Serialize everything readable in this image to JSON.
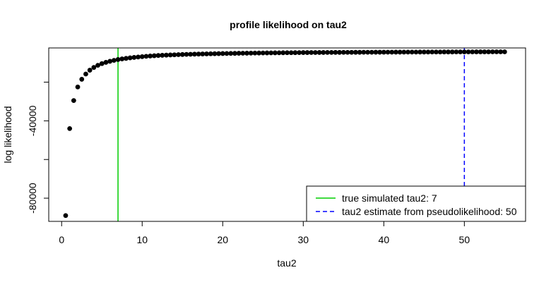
{
  "chart_data": {
    "type": "scatter",
    "title": "profile likelihood on tau2",
    "xlabel": "tau2",
    "ylabel": "log likelihood",
    "xlim": [
      -1.6,
      57.6
    ],
    "ylim": [
      -92000,
      -2300
    ],
    "x_ticks": [
      0,
      10,
      20,
      30,
      40,
      50
    ],
    "y_ticks": [
      -80000,
      -40000
    ],
    "y_minor_ticks": [
      -60000,
      -20000
    ],
    "grid": false,
    "point_color": "#000000",
    "points_x_range": [
      0.5,
      55
    ],
    "points_x_step": 0.5,
    "points_y_sample": [
      [
        0.5,
        -89000
      ],
      [
        1.0,
        -44000
      ],
      [
        1.5,
        -29500
      ],
      [
        2.0,
        -22500
      ],
      [
        2.5,
        -18500
      ],
      [
        3.0,
        -15800
      ],
      [
        3.5,
        -13800
      ],
      [
        4.0,
        -12400
      ],
      [
        5.0,
        -10400
      ],
      [
        6.0,
        -9200
      ],
      [
        7.0,
        -8300
      ],
      [
        8.0,
        -7700
      ],
      [
        10.0,
        -6800
      ],
      [
        12.0,
        -6200
      ],
      [
        15.0,
        -5700
      ],
      [
        20.0,
        -5200
      ],
      [
        25.0,
        -4900
      ],
      [
        30.0,
        -4700
      ],
      [
        40.0,
        -4500
      ],
      [
        50.0,
        -4350
      ],
      [
        55.0,
        -4300
      ]
    ],
    "lines": [
      {
        "name": "true simulated tau2: 7",
        "x": 7,
        "color": "#00cd00",
        "style": "solid"
      },
      {
        "name": "tau2 estimate from pseudolikelihood: 50",
        "x": 50,
        "color": "#0000ff",
        "style": "dashed"
      }
    ],
    "legend_position": "bottom-right"
  }
}
